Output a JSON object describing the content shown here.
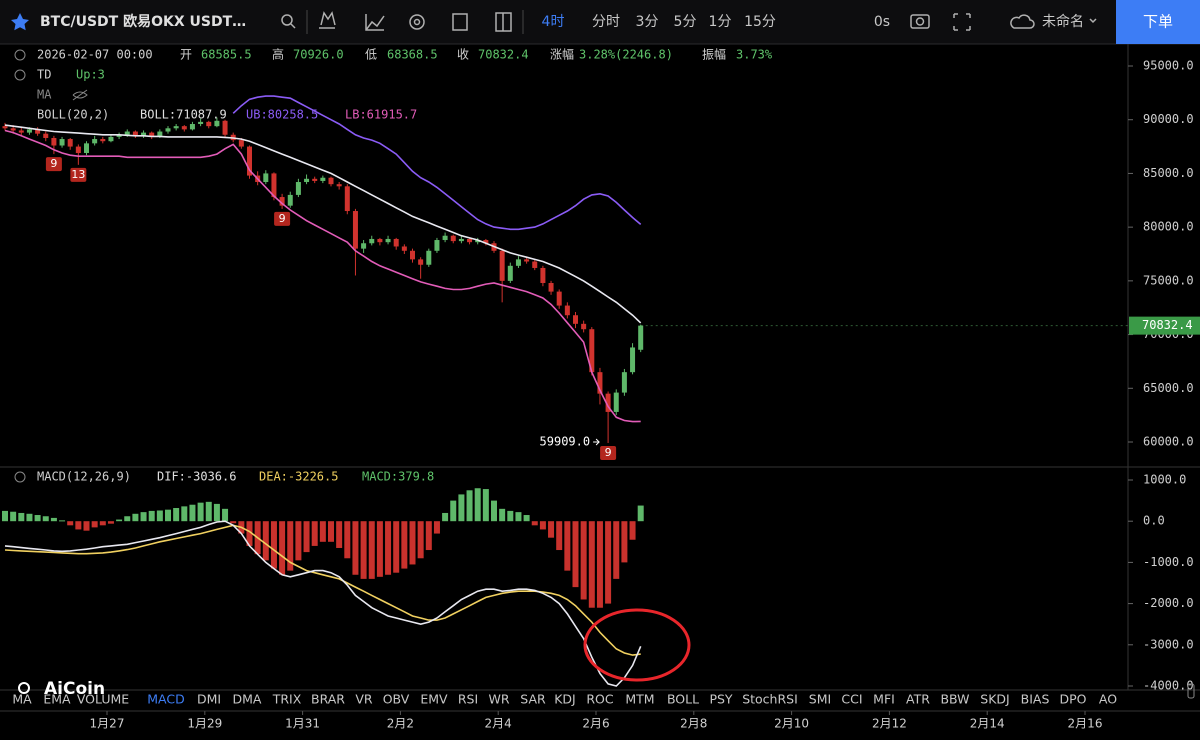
{
  "header": {
    "symbol": "BTC/USDT 欧易OKX USDT…",
    "intervals": [
      "4时",
      "分时",
      "3分",
      "5分",
      "1分",
      "15分"
    ],
    "timer": "0s",
    "layout_name": "未命名",
    "order_button": "下单"
  },
  "info": {
    "time": "2026-02-07 00:00",
    "fields": [
      {
        "label": "开",
        "value": "68585.5"
      },
      {
        "label": "高",
        "value": "70926.0"
      },
      {
        "label": "低",
        "value": "68368.5"
      },
      {
        "label": "收",
        "value": "70832.4"
      },
      {
        "label": "涨幅",
        "value": "3.28%(2246.8)"
      },
      {
        "label": "振幅",
        "value": "3.73%"
      }
    ]
  },
  "indicators": {
    "td": "TD",
    "td_value": "Up:3",
    "ma": "MA",
    "boll": "BOLL(20,2)",
    "boll_mid": "BOLL:71087.9",
    "boll_up": "UB:80258.5",
    "boll_low": "LB:61915.7",
    "macd": "MACD(12,26,9)",
    "dif": "DIF:-3036.6",
    "dea": "DEA:-3226.5",
    "macd_value": "MACD:379.8"
  },
  "price_axis": {
    "ticks": [
      {
        "value": 95000,
        "label": "95000.0"
      },
      {
        "value": 90000,
        "label": "90000.0"
      },
      {
        "value": 85000,
        "label": "85000.0"
      },
      {
        "value": 80000,
        "label": "80000.0"
      },
      {
        "value": 75000,
        "label": "75000.0"
      },
      {
        "value": 70000,
        "label": "70000.0"
      },
      {
        "value": 65000,
        "label": "65000.0"
      },
      {
        "value": 60000,
        "label": "60000.0"
      }
    ]
  },
  "candles": [
    [
      89400,
      89700,
      89000,
      89200
    ],
    [
      89200,
      89500,
      88700,
      89000
    ],
    [
      89000,
      89300,
      88500,
      88800
    ],
    [
      88800,
      89300,
      88600,
      89100
    ],
    [
      89100,
      89300,
      88500,
      88700
    ],
    [
      88700,
      88900,
      88000,
      88300
    ],
    [
      88300,
      88500,
      86800,
      87600
    ],
    [
      87600,
      88400,
      87400,
      88200
    ],
    [
      88200,
      88300,
      87200,
      87500
    ],
    [
      87500,
      87700,
      85800,
      86900
    ],
    [
      86900,
      88000,
      86700,
      87800
    ],
    [
      87800,
      88500,
      87600,
      88200
    ],
    [
      88200,
      88400,
      87800,
      88000
    ],
    [
      88000,
      88600,
      87900,
      88400
    ],
    [
      88400,
      88800,
      88200,
      88600
    ],
    [
      88600,
      89100,
      88400,
      88900
    ],
    [
      88900,
      89000,
      88300,
      88500
    ],
    [
      88500,
      89000,
      88300,
      88800
    ],
    [
      88800,
      88900,
      88200,
      88400
    ],
    [
      88400,
      89100,
      88300,
      88900
    ],
    [
      88900,
      89400,
      88700,
      89200
    ],
    [
      89200,
      89600,
      89000,
      89400
    ],
    [
      89400,
      89500,
      88900,
      89100
    ],
    [
      89100,
      89800,
      89000,
      89600
    ],
    [
      89600,
      90100,
      89400,
      89800
    ],
    [
      89800,
      89900,
      89200,
      89400
    ],
    [
      89400,
      90200,
      89300,
      89900
    ],
    [
      89900,
      90000,
      88400,
      88600
    ],
    [
      88600,
      88800,
      87900,
      88100
    ],
    [
      88100,
      88300,
      87300,
      87500
    ],
    [
      87500,
      87600,
      84500,
      84800
    ],
    [
      84800,
      85200,
      83900,
      84200
    ],
    [
      84200,
      85300,
      84000,
      85000
    ],
    [
      85000,
      85100,
      82500,
      82800
    ],
    [
      82800,
      83100,
      81700,
      82000
    ],
    [
      82000,
      83300,
      81800,
      83000
    ],
    [
      83000,
      84500,
      82800,
      84200
    ],
    [
      84200,
      84900,
      84000,
      84500
    ],
    [
      84500,
      84700,
      84100,
      84300
    ],
    [
      84300,
      84800,
      84100,
      84600
    ],
    [
      84600,
      84700,
      83800,
      84000
    ],
    [
      84000,
      84200,
      83500,
      83800
    ],
    [
      83800,
      84000,
      81200,
      81500
    ],
    [
      81500,
      81700,
      75500,
      78000
    ],
    [
      78000,
      78800,
      77600,
      78500
    ],
    [
      78500,
      79200,
      78300,
      78900
    ],
    [
      78900,
      79000,
      78300,
      78600
    ],
    [
      78600,
      79200,
      78400,
      78900
    ],
    [
      78900,
      79000,
      77900,
      78200
    ],
    [
      78200,
      78400,
      77500,
      77800
    ],
    [
      77800,
      78000,
      76700,
      77000
    ],
    [
      77000,
      77200,
      75200,
      76500
    ],
    [
      76500,
      78000,
      76300,
      77800
    ],
    [
      77800,
      79000,
      77600,
      78800
    ],
    [
      78800,
      79500,
      78600,
      79200
    ],
    [
      79200,
      79300,
      78500,
      78700
    ],
    [
      78700,
      79200,
      78500,
      78900
    ],
    [
      78900,
      79000,
      78400,
      78600
    ],
    [
      78600,
      79000,
      78400,
      78800
    ],
    [
      78800,
      78900,
      78300,
      78500
    ],
    [
      78500,
      78700,
      77600,
      77800
    ],
    [
      77800,
      78000,
      73000,
      75000
    ],
    [
      75000,
      76700,
      74800,
      76400
    ],
    [
      76400,
      77300,
      76200,
      77000
    ],
    [
      77000,
      77200,
      76600,
      76800
    ],
    [
      76800,
      77000,
      76000,
      76200
    ],
    [
      76200,
      76400,
      74500,
      74800
    ],
    [
      74800,
      75000,
      73700,
      74000
    ],
    [
      74000,
      74200,
      72400,
      72700
    ],
    [
      72700,
      73000,
      71500,
      71800
    ],
    [
      71800,
      72100,
      70600,
      71000
    ],
    [
      71000,
      71300,
      70200,
      70500
    ],
    [
      70500,
      70700,
      66200,
      66500
    ],
    [
      66500,
      66900,
      63500,
      64500
    ],
    [
      64500,
      64700,
      59909,
      62800
    ],
    [
      62800,
      64900,
      62500,
      64600
    ],
    [
      64600,
      66800,
      64300,
      66500
    ],
    [
      66500,
      69200,
      66300,
      68800
    ],
    [
      68585.5,
      70926,
      68368.5,
      70832.4
    ]
  ],
  "boll": {
    "upper": [
      null,
      null,
      null,
      null,
      null,
      null,
      null,
      null,
      null,
      null,
      null,
      null,
      null,
      null,
      null,
      null,
      null,
      null,
      null,
      null,
      null,
      null,
      null,
      null,
      null,
      null,
      null,
      null,
      90600,
      91300,
      91900,
      92100,
      92200,
      92200,
      92100,
      92000,
      91600,
      91200,
      90800,
      90400,
      90000,
      89600,
      89100,
      88600,
      88300,
      88100,
      87800,
      87300,
      86800,
      86000,
      85200,
      84600,
      84200,
      83700,
      83100,
      82500,
      81900,
      81300,
      80700,
      80300,
      80000,
      79900,
      79800,
      79800,
      79900,
      80000,
      80300,
      80700,
      81100,
      81500,
      82000,
      82600,
      83000,
      83100,
      82900,
      82300,
      81600,
      80900,
      80258.5
    ],
    "middle": [
      89500,
      89400,
      89300,
      89200,
      89100,
      89000,
      88900,
      88850,
      88800,
      88750,
      88700,
      88650,
      88600,
      88600,
      88600,
      88550,
      88500,
      88500,
      88450,
      88450,
      88400,
      88400,
      88400,
      88400,
      88400,
      88400,
      88400,
      88350,
      88300,
      88200,
      88000,
      87700,
      87400,
      87100,
      86800,
      86500,
      86200,
      85900,
      85600,
      85300,
      85000,
      84600,
      84200,
      83800,
      83400,
      83000,
      82600,
      82200,
      81800,
      81400,
      81000,
      80700,
      80400,
      80100,
      79800,
      79500,
      79200,
      79000,
      78800,
      78500,
      78200,
      77900,
      77600,
      77400,
      77200,
      77000,
      76800,
      76500,
      76200,
      75800,
      75400,
      75000,
      74500,
      74000,
      73500,
      73000,
      72400,
      71800,
      71087.9
    ],
    "lower": [
      89000,
      88800,
      88500,
      88200,
      87900,
      87600,
      87200,
      86900,
      86700,
      86600,
      86600,
      86600,
      86600,
      86600,
      86600,
      86500,
      86500,
      86500,
      86500,
      86500,
      86500,
      86500,
      86500,
      86500,
      86500,
      86600,
      86800,
      87300,
      87700,
      86800,
      85300,
      84500,
      83700,
      82900,
      82200,
      81600,
      81100,
      80600,
      80200,
      79800,
      79400,
      79000,
      78600,
      77800,
      77300,
      76800,
      76400,
      76100,
      75800,
      75500,
      75200,
      74900,
      74700,
      74500,
      74300,
      74200,
      74200,
      74300,
      74500,
      74700,
      74800,
      74600,
      74400,
      74200,
      74000,
      73700,
      73400,
      72800,
      72000,
      71100,
      70200,
      69300,
      66500,
      64800,
      63300,
      62300,
      62000,
      61900,
      61915.7
    ]
  },
  "td_marks": [
    {
      "candle": 6,
      "text": "9"
    },
    {
      "candle": 9,
      "text": "13"
    },
    {
      "candle": 34,
      "text": "9"
    },
    {
      "candle": 74,
      "text": "9"
    }
  ],
  "low_marker": {
    "candle": 74,
    "value": 59909,
    "label": "59909.0"
  },
  "last_price": 70832.4,
  "macd": {
    "ticks": [
      {
        "value": 1000,
        "label": "1000.0"
      },
      {
        "value": 0,
        "label": "0.0"
      },
      {
        "value": -1000,
        "label": "-1000.0"
      },
      {
        "value": -2000,
        "label": "-2000.0"
      },
      {
        "value": -3000,
        "label": "-3000.0"
      },
      {
        "value": -4000,
        "label": "-4000.0"
      }
    ],
    "hist": [
      250,
      230,
      200,
      180,
      150,
      120,
      80,
      20,
      -100,
      -200,
      -230,
      -150,
      -100,
      -60,
      40,
      120,
      180,
      220,
      250,
      260,
      280,
      320,
      360,
      400,
      450,
      470,
      420,
      300,
      -50,
      -300,
      -600,
      -800,
      -950,
      -1150,
      -1300,
      -1200,
      -950,
      -750,
      -600,
      -500,
      -500,
      -650,
      -900,
      -1300,
      -1400,
      -1400,
      -1350,
      -1300,
      -1250,
      -1150,
      -1050,
      -900,
      -700,
      -300,
      200,
      500,
      650,
      750,
      800,
      780,
      500,
      300,
      250,
      220,
      150,
      -100,
      -200,
      -400,
      -700,
      -1200,
      -1600,
      -1900,
      -2100,
      -2100,
      -2000,
      -1400,
      -1000,
      -450,
      379.8
    ],
    "dif": [
      -600,
      -620,
      -640,
      -660,
      -680,
      -700,
      -720,
      -730,
      -720,
      -700,
      -680,
      -650,
      -620,
      -600,
      -580,
      -560,
      -520,
      -480,
      -440,
      -400,
      -350,
      -300,
      -250,
      -200,
      -150,
      -80,
      -20,
      0,
      -100,
      -300,
      -600,
      -800,
      -1000,
      -1150,
      -1300,
      -1350,
      -1300,
      -1250,
      -1200,
      -1200,
      -1250,
      -1350,
      -1550,
      -1800,
      -1950,
      -2100,
      -2200,
      -2300,
      -2350,
      -2400,
      -2450,
      -2500,
      -2450,
      -2350,
      -2200,
      -2050,
      -1900,
      -1800,
      -1700,
      -1650,
      -1650,
      -1700,
      -1680,
      -1650,
      -1650,
      -1680,
      -1750,
      -1850,
      -2000,
      -2250,
      -2550,
      -2850,
      -3300,
      -3700,
      -3950,
      -4000,
      -3800,
      -3500,
      -3036.6
    ],
    "dea": [
      -700,
      -710,
      -720,
      -730,
      -740,
      -750,
      -760,
      -770,
      -780,
      -790,
      -790,
      -780,
      -770,
      -750,
      -720,
      -690,
      -650,
      -600,
      -550,
      -500,
      -460,
      -420,
      -380,
      -340,
      -300,
      -250,
      -200,
      -150,
      -100,
      -150,
      -250,
      -400,
      -550,
      -700,
      -850,
      -1000,
      -1100,
      -1200,
      -1250,
      -1300,
      -1350,
      -1400,
      -1500,
      -1600,
      -1700,
      -1800,
      -1900,
      -2000,
      -2100,
      -2200,
      -2300,
      -2350,
      -2400,
      -2400,
      -2350,
      -2250,
      -2150,
      -2050,
      -1950,
      -1850,
      -1800,
      -1750,
      -1720,
      -1700,
      -1700,
      -1700,
      -1720,
      -1750,
      -1800,
      -1900,
      -2050,
      -2250,
      -2450,
      -2700,
      -2900,
      -3100,
      -3200,
      -3250,
      -3226.5
    ]
  },
  "tabs": [
    "MA",
    "EMA",
    "VOLUME",
    "MACD",
    "DMI",
    "DMA",
    "TRIX",
    "BRAR",
    "VR",
    "OBV",
    "EMV",
    "RSI",
    "WR",
    "SAR",
    "KDJ",
    "ROC",
    "MTM",
    "BOLL",
    "PSY",
    "StochRSI",
    "SMI",
    "CCI",
    "MFI",
    "ATR",
    "BBW",
    "SKDJ",
    "BIAS",
    "DPO",
    "AO"
  ],
  "active_tab": "MACD",
  "dates": [
    "1月27",
    "1月29",
    "1月31",
    "2月2",
    "2月4",
    "2月6",
    "2月8",
    "2月10",
    "2月12",
    "2月14",
    "2月16"
  ],
  "logo": "AiCoin"
}
